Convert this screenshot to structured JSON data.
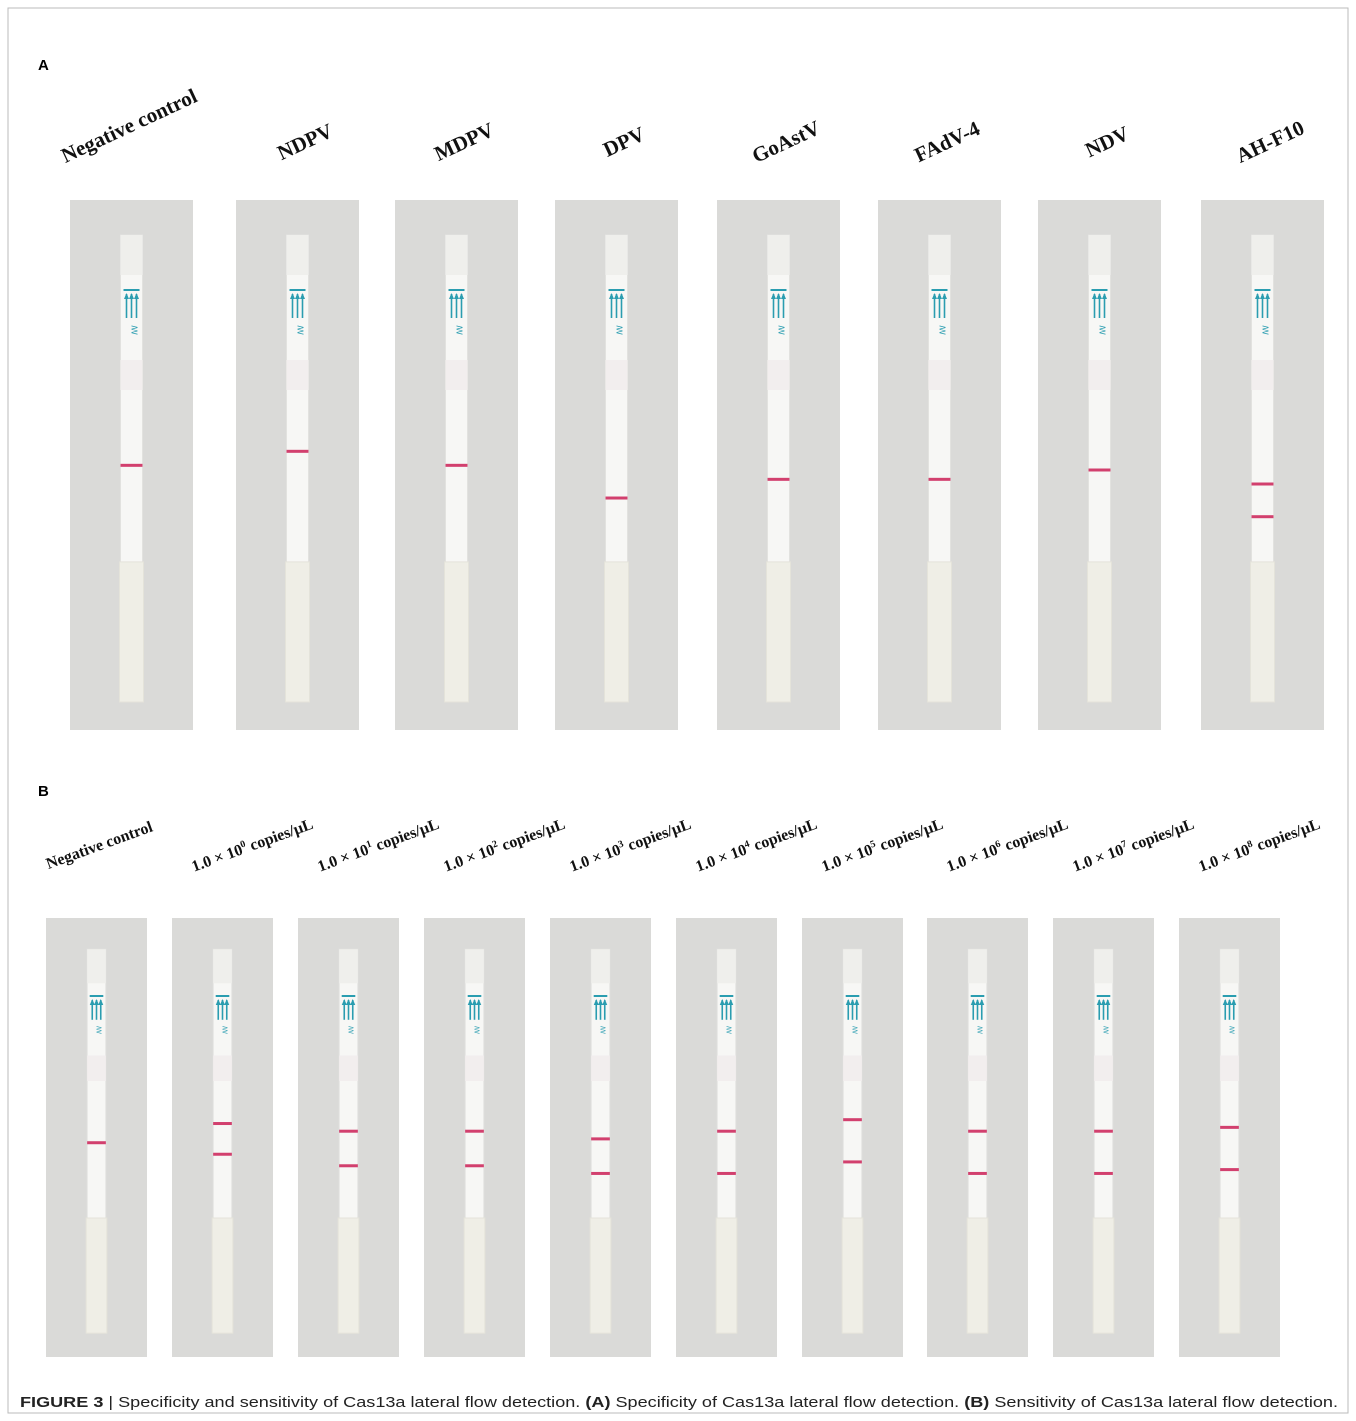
{
  "panels": [
    {
      "label": "A",
      "strips": [
        {
          "label": "Negative control"
        },
        {
          "label": "NDPV"
        },
        {
          "label": "MDPV"
        },
        {
          "label": "DPV"
        },
        {
          "label": "GoAstV"
        },
        {
          "label": "FAdV-4"
        },
        {
          "label": "NDV"
        },
        {
          "label": "AH-F10"
        }
      ]
    },
    {
      "label": "B",
      "strips": [
        {
          "label": "Negative control"
        },
        {
          "base": "1.0 × 10",
          "exponent": "0",
          "unit": " copies/μL"
        },
        {
          "base": "1.0 × 10",
          "exponent": "1",
          "unit": " copies/μL"
        },
        {
          "base": "1.0 × 10",
          "exponent": "2",
          "unit": " copies/μL"
        },
        {
          "base": "1.0 × 10",
          "exponent": "3",
          "unit": " copies/μL"
        },
        {
          "base": "1.0 × 10",
          "exponent": "4",
          "unit": " copies/μL"
        },
        {
          "base": "1.0 × 10",
          "exponent": "5",
          "unit": " copies/μL"
        },
        {
          "base": "1.0 × 10",
          "exponent": "6",
          "unit": " copies/μL"
        },
        {
          "base": "1.0 × 10",
          "exponent": "7",
          "unit": " copies/μL"
        },
        {
          "base": "1.0 × 10",
          "exponent": "8",
          "unit": " copies/μL"
        }
      ]
    }
  ],
  "caption": {
    "figure": "FIGURE 3",
    "separator": " | ",
    "text": "Specificity and sensitivity of Cas13a lateral flow detection. ",
    "a_label": "(A)",
    "a_text": " Specificity of Cas13a lateral flow detection. ",
    "b_label": "(B)",
    "b_text": " Sensitivity of Cas13a lateral flow detection."
  }
}
